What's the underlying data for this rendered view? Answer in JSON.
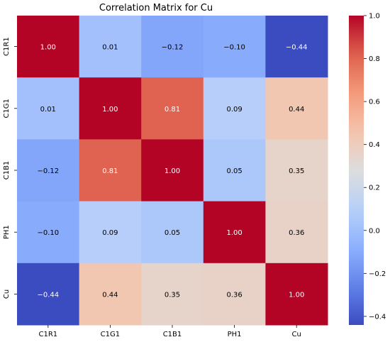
{
  "chart_data": {
    "type": "heatmap",
    "title": "Correlation Matrix for Cu",
    "xlabel": "",
    "ylabel": "",
    "x_categories": [
      "C1R1",
      "C1G1",
      "C1B1",
      "PH1",
      "Cu"
    ],
    "y_categories": [
      "C1R1",
      "C1G1",
      "C1B1",
      "PH1",
      "Cu"
    ],
    "values": [
      [
        1.0,
        0.01,
        -0.12,
        -0.1,
        -0.44
      ],
      [
        0.01,
        1.0,
        0.81,
        0.09,
        0.44
      ],
      [
        -0.12,
        0.81,
        1.0,
        0.05,
        0.35
      ],
      [
        -0.1,
        0.09,
        0.05,
        1.0,
        0.36
      ],
      [
        -0.44,
        0.44,
        0.35,
        0.36,
        1.0
      ]
    ],
    "value_labels": [
      [
        "1.00",
        "0.01",
        "−0.12",
        "−0.10",
        "−0.44"
      ],
      [
        "0.01",
        "1.00",
        "0.81",
        "0.09",
        "0.44"
      ],
      [
        "−0.12",
        "0.81",
        "1.00",
        "0.05",
        "0.35"
      ],
      [
        "−0.10",
        "0.09",
        "0.05",
        "1.00",
        "0.36"
      ],
      [
        "−0.44",
        "0.44",
        "0.35",
        "0.36",
        "1.00"
      ]
    ],
    "colormap": "coolwarm",
    "vmin": -0.44,
    "vmax": 1.0,
    "colorbar": {
      "position": "right",
      "ticks": [
        -0.4,
        -0.2,
        0.0,
        0.2,
        0.4,
        0.6,
        0.8,
        1.0
      ],
      "tick_labels": [
        "−0.4",
        "−0.2",
        "0.0",
        "0.2",
        "0.4",
        "0.6",
        "0.8",
        "1.0"
      ]
    },
    "grid": false
  }
}
